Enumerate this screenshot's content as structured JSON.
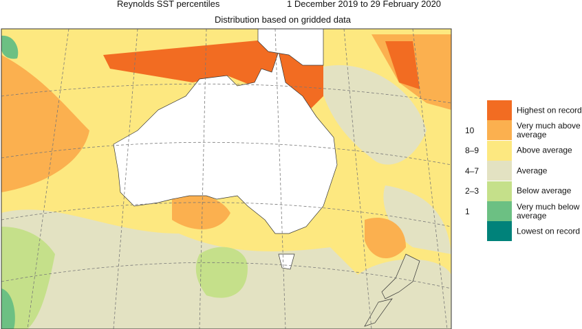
{
  "title_left": "Reynolds SST percentiles",
  "title_right": "1 December 2019 to 29 February 2020",
  "subtitle": "Distribution based on gridded data",
  "legend": [
    {
      "label": "Highest on record",
      "color": "#f26c22"
    },
    {
      "label": "Very much above average",
      "decile": "10",
      "color": "#fbb04f"
    },
    {
      "label": "Above average",
      "decile": "8–9",
      "color": "#fde880"
    },
    {
      "label": "Average",
      "decile": "4–7",
      "color": "#e3e2c2"
    },
    {
      "label": "Below average",
      "decile": "2–3",
      "color": "#c5e08a"
    },
    {
      "label": "Very much below average",
      "decile": "1",
      "color": "#6cc083"
    },
    {
      "label": "Lowest on record",
      "color": "#00827a"
    }
  ]
}
